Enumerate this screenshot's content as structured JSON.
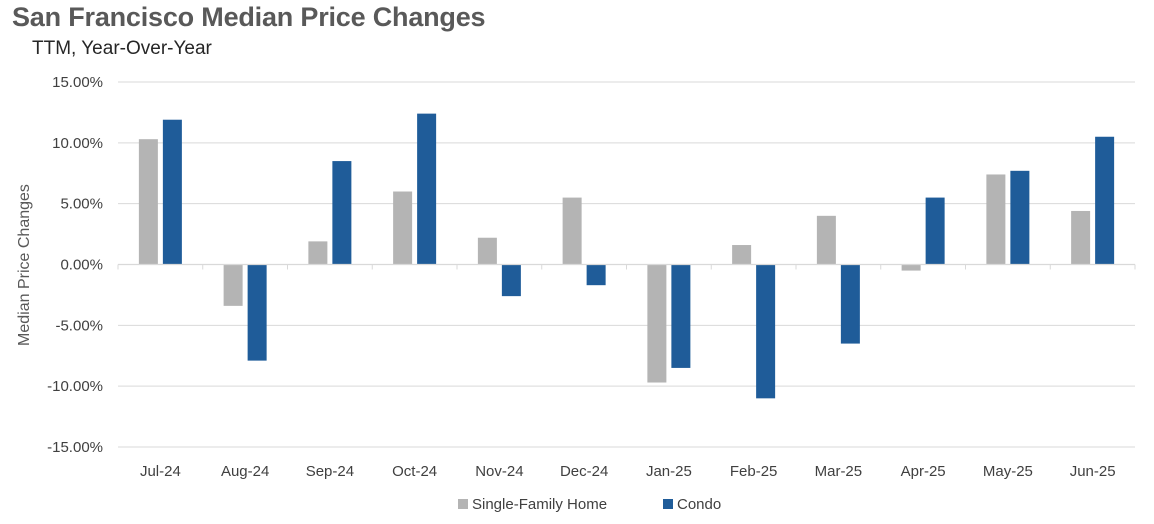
{
  "chart_data": {
    "type": "bar",
    "title": "San Francisco Median Price Changes",
    "subtitle": "TTM, Year-Over-Year",
    "xlabel": "",
    "ylabel": "Median Price Changes",
    "ylim": [
      -15,
      15
    ],
    "yticks": [
      15,
      10,
      5,
      0,
      -5,
      -10,
      -15
    ],
    "ytick_labels": [
      "15.00%",
      "10.00%",
      "5.00%",
      "0.00%",
      "-5.00%",
      "-10.00%",
      "-15.00%"
    ],
    "categories": [
      "Jul-24",
      "Aug-24",
      "Sep-24",
      "Oct-24",
      "Nov-24",
      "Dec-24",
      "Jan-25",
      "Feb-25",
      "Mar-25",
      "Apr-25",
      "May-25",
      "Jun-25"
    ],
    "series": [
      {
        "name": "Single-Family Home",
        "color": "#b4b4b4",
        "values": [
          10.3,
          -3.4,
          1.9,
          6.0,
          2.2,
          5.5,
          -9.7,
          1.6,
          4.0,
          -0.5,
          7.4,
          4.4
        ]
      },
      {
        "name": "Condo",
        "color": "#1f5c99",
        "values": [
          11.9,
          -7.9,
          8.5,
          12.4,
          -2.6,
          -1.7,
          -8.5,
          -11.0,
          -6.5,
          5.5,
          7.7,
          10.5
        ]
      }
    ],
    "grid": true,
    "legend_position": "bottom"
  }
}
